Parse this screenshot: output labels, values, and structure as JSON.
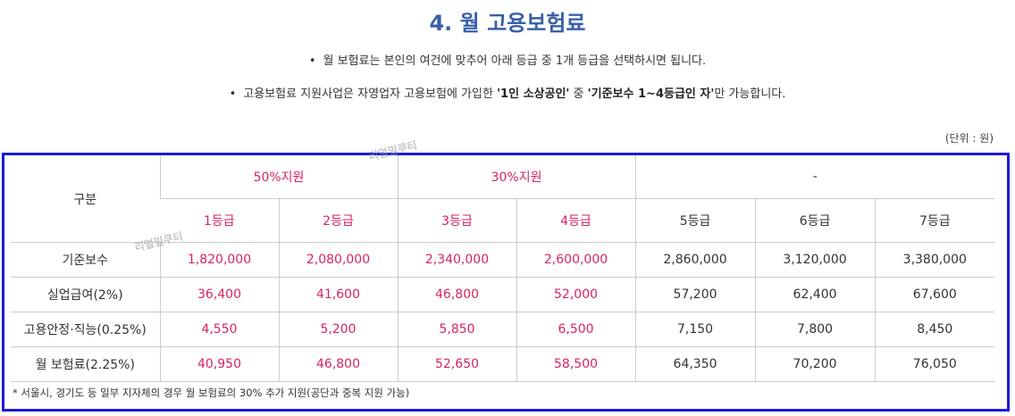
{
  "title": "4. 월 고용보험료",
  "bullets": {
    "line1": "월 보험료는 본인의 여건에 맞추어 아래 등급 중 1개 등급을 선택하시면 됩니다.",
    "line2_pre": "고용보험료 지원사업은 자영업자 고용보험에 가입한 ",
    "line2_b1": "'1인 소상공인'",
    "line2_mid": " 중 ",
    "line2_b2": "'기준보수 1~4등급인 자'",
    "line2_post": "만 가능합니다."
  },
  "unit_label": "(단위 : 원)",
  "watermark": "리얼밀쿠티",
  "table": {
    "corner_label": "구분",
    "groups": [
      "50%지원",
      "30%지원",
      "-"
    ],
    "grades": [
      "1등급",
      "2등급",
      "3등급",
      "4등급",
      "5등급",
      "6등급",
      "7등급"
    ],
    "rows": [
      {
        "label": "기준보수",
        "values": [
          "1,820,000",
          "2,080,000",
          "2,340,000",
          "2,600,000",
          "2,860,000",
          "3,120,000",
          "3,380,000"
        ]
      },
      {
        "label": "실업급여(2%)",
        "values": [
          "36,400",
          "41,600",
          "46,800",
          "52,000",
          "57,200",
          "62,400",
          "67,600"
        ]
      },
      {
        "label": "고용안정·직능(0.25%)",
        "values": [
          "4,550",
          "5,200",
          "5,850",
          "6,500",
          "7,150",
          "7,800",
          "8,450"
        ]
      },
      {
        "label": "월 보험료(2.25%)",
        "values": [
          "40,950",
          "46,800",
          "52,650",
          "58,500",
          "64,350",
          "70,200",
          "76,050"
        ]
      }
    ]
  },
  "footnote": "* 서울시, 경기도 등 일부 지자체의 경우 월 보험료의 30% 추가 지원(공단과 중복 지원 가능)",
  "colors": {
    "title": "#3a5fa8",
    "highlight": "#d6245a",
    "frame": "#1a1adb"
  }
}
